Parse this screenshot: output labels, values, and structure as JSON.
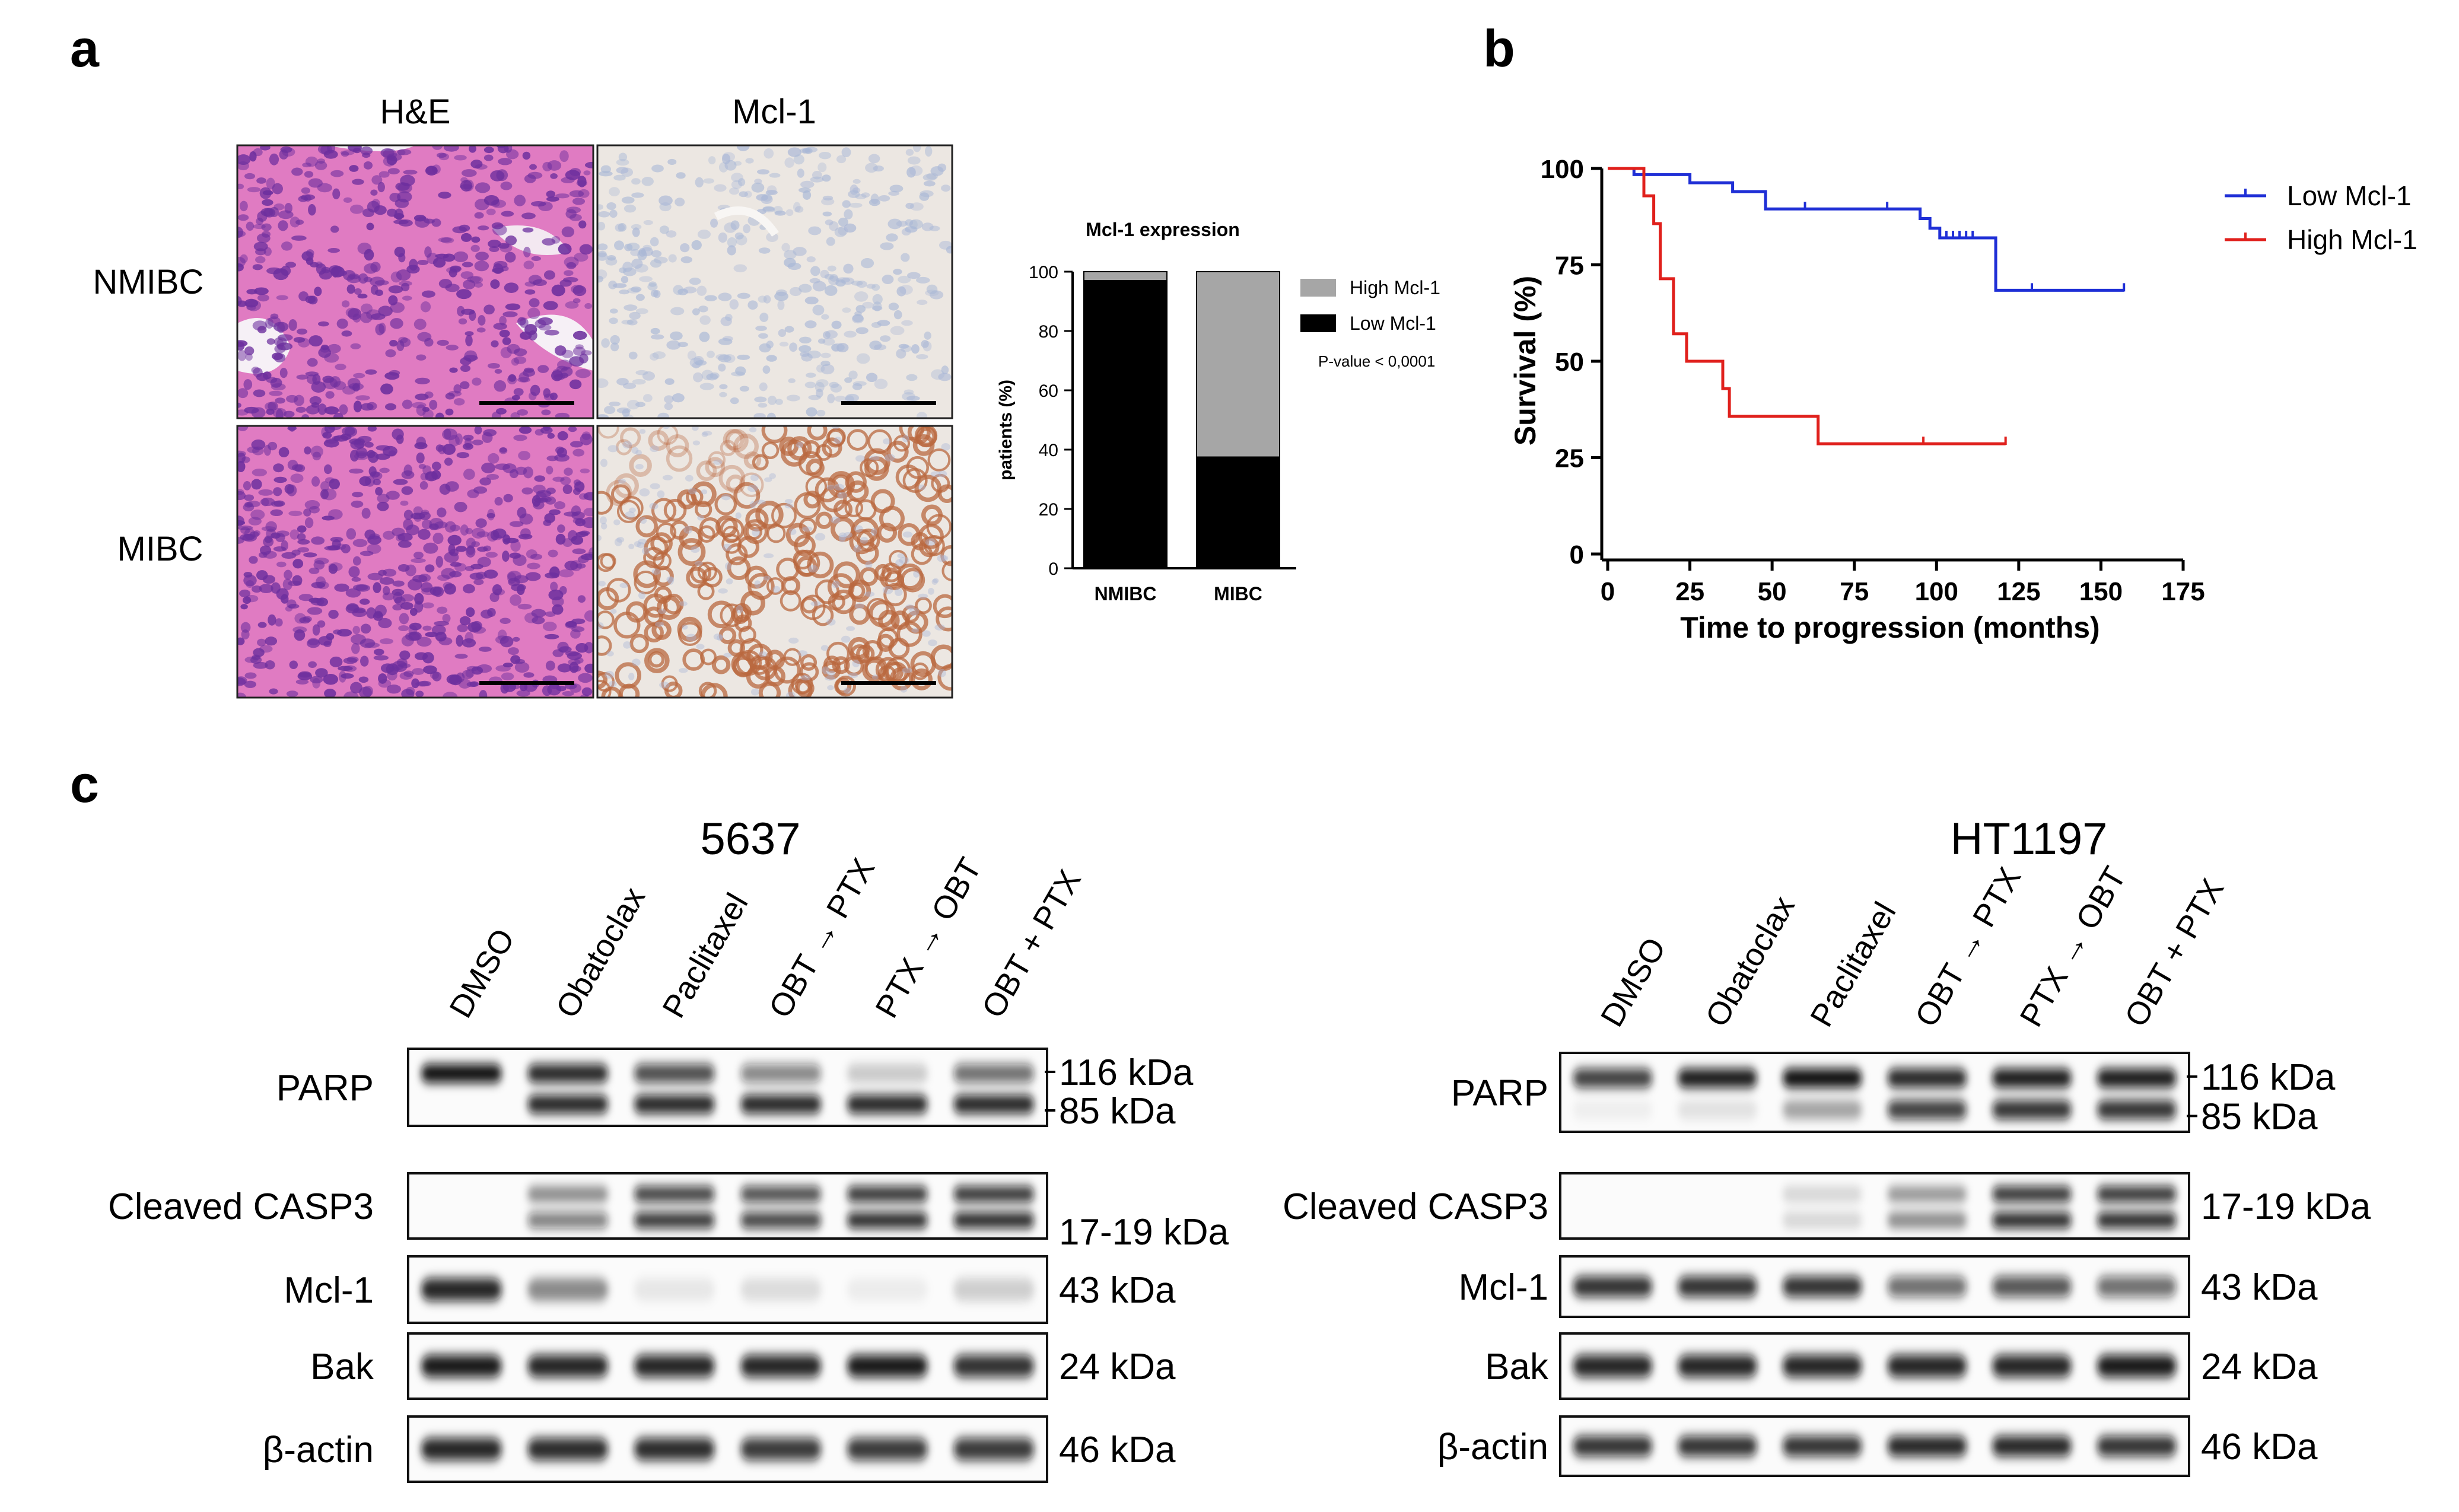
{
  "panel_letters": {
    "a": "a",
    "b": "b",
    "c": "c"
  },
  "panel_a": {
    "col_headers": [
      "H&E",
      "Mcl-1"
    ],
    "row_labels": [
      "NMIBC",
      "MIBC"
    ],
    "micrographs": [
      {
        "stain": "he",
        "row": 0,
        "col": 0,
        "tissue": "papillary"
      },
      {
        "stain": "ihc",
        "row": 0,
        "col": 1,
        "tissue": "papillary",
        "intensity": "negative"
      },
      {
        "stain": "he",
        "row": 1,
        "col": 0,
        "tissue": "invasive"
      },
      {
        "stain": "ihc",
        "row": 1,
        "col": 1,
        "tissue": "invasive",
        "intensity": "strong"
      }
    ],
    "colors": {
      "he_bg": "#e07bc2",
      "he_nuclei": "#6d2f9e",
      "ihc_bg": "#ece7e2",
      "ihc_neg_nuclei": "#a9b7d6",
      "ihc_pos": "#b9683f",
      "scale_bar": "#000000"
    }
  },
  "chart_data": [
    {
      "type": "bar",
      "stacked": true,
      "title": "Mcl-1 expression",
      "ylabel": "patients (%)",
      "xlabel": "",
      "categories": [
        "NMIBC",
        "MIBC"
      ],
      "series": [
        {
          "name": "Low Mcl-1",
          "values": [
            97,
            37.5
          ],
          "color": "#000000"
        },
        {
          "name": "High Mcl-1",
          "values": [
            3,
            62.5
          ],
          "color": "#a6a6a6"
        }
      ],
      "ylim": [
        0,
        100
      ],
      "yticks": [
        "0",
        "20",
        "40",
        "60",
        "80",
        "100"
      ],
      "annotation": "P-value < 0,0001",
      "legend": "right",
      "legend_order": [
        "High Mcl-1",
        "Low Mcl-1"
      ]
    },
    {
      "type": "line",
      "step": true,
      "xlabel": "Time to progression (months)",
      "ylabel": "Survival (%)",
      "xlim": [
        0,
        175
      ],
      "ylim": [
        0,
        100
      ],
      "xticks": [
        "0",
        "25",
        "50",
        "75",
        "100",
        "125",
        "150",
        "175"
      ],
      "yticks": [
        "0",
        "25",
        "50",
        "75",
        "100"
      ],
      "legend": "top-right",
      "series": [
        {
          "name": "Low Mcl-1",
          "color": "#1f2fd6",
          "points": [
            [
              0,
              100
            ],
            [
              8,
              100
            ],
            [
              8,
              98.4
            ],
            [
              25,
              98.4
            ],
            [
              25,
              96.3
            ],
            [
              38,
              96.3
            ],
            [
              38,
              94
            ],
            [
              48,
              94
            ],
            [
              48,
              89.5
            ],
            [
              95,
              89.5
            ],
            [
              95,
              87
            ],
            [
              98,
              87
            ],
            [
              98,
              84.5
            ],
            [
              101,
              84.5
            ],
            [
              101,
              82
            ],
            [
              118,
              82
            ],
            [
              118,
              68.4
            ],
            [
              157,
              68.4
            ]
          ],
          "censored": [
            [
              60,
              89.5
            ],
            [
              85,
              89.5
            ],
            [
              103,
              82
            ],
            [
              105,
              82
            ],
            [
              107,
              82
            ],
            [
              109,
              82
            ],
            [
              111,
              82
            ],
            [
              129,
              68.4
            ],
            [
              157,
              68.4
            ]
          ]
        },
        {
          "name": "High Mcl-1",
          "color": "#e0201c",
          "points": [
            [
              0,
              100
            ],
            [
              11,
              100
            ],
            [
              11,
              92.9
            ],
            [
              14,
              92.9
            ],
            [
              14,
              85.7
            ],
            [
              16,
              85.7
            ],
            [
              16,
              71.4
            ],
            [
              20,
              71.4
            ],
            [
              20,
              57.1
            ],
            [
              24,
              57.1
            ],
            [
              24,
              50
            ],
            [
              35,
              50
            ],
            [
              35,
              42.9
            ],
            [
              37,
              42.9
            ],
            [
              37,
              35.7
            ],
            [
              64,
              35.7
            ],
            [
              64,
              28.6
            ],
            [
              121,
              28.6
            ]
          ],
          "censored": [
            [
              96,
              28.6
            ],
            [
              121,
              28.6
            ]
          ]
        }
      ]
    }
  ],
  "panel_c": {
    "blots": [
      {
        "title": "5637",
        "lanes": [
          "DMSO",
          "Obatoclax",
          "Paclitaxel",
          "OBT → PTX",
          "PTX → OBT",
          "OBT + PTX"
        ],
        "rows": [
          {
            "label": "PARP",
            "sizes": [
              "116 kDa",
              "85 kDa"
            ],
            "bands": [
              [
                1.0,
                0.9,
                0.75,
                0.5,
                0.2,
                0.6
              ],
              [
                0,
                0.9,
                0.9,
                0.9,
                0.9,
                0.9
              ]
            ]
          },
          {
            "label": "Cleaved CASP3",
            "sizes": [
              "17-19 kDa"
            ],
            "bands": [
              [
                0,
                0.45,
                0.8,
                0.75,
                0.85,
                0.85
              ],
              [
                0,
                0.55,
                0.85,
                0.8,
                0.9,
                0.9
              ]
            ]
          },
          {
            "label": "Mcl-1",
            "sizes": [
              "43 kDa"
            ],
            "bands": [
              [
                0.9,
                0.45,
                0.08,
                0.12,
                0.06,
                0.18
              ]
            ]
          },
          {
            "label": "Bak",
            "sizes": [
              "24 kDa"
            ],
            "bands": [
              [
                0.95,
                0.9,
                0.9,
                0.9,
                0.95,
                0.85
              ]
            ]
          },
          {
            "label": "β-actin",
            "sizes": [
              "46 kDa"
            ],
            "bands": [
              [
                0.9,
                0.88,
                0.88,
                0.82,
                0.82,
                0.82
              ]
            ]
          }
        ]
      },
      {
        "title": "HT1197",
        "lanes": [
          "DMSO",
          "Obatoclax",
          "Paclitaxel",
          "OBT → PTX",
          "PTX → OBT",
          "OBT + PTX"
        ],
        "rows": [
          {
            "label": "PARP",
            "sizes": [
              "116 kDa",
              "85 kDa"
            ],
            "bands": [
              [
                0.8,
                0.95,
                1.0,
                0.9,
                0.95,
                0.95
              ],
              [
                0.05,
                0.1,
                0.35,
                0.8,
                0.85,
                0.85
              ]
            ]
          },
          {
            "label": "Cleaved CASP3",
            "sizes": [
              "17-19 kDa"
            ],
            "bands": [
              [
                0,
                0,
                0.15,
                0.4,
                0.85,
                0.85
              ],
              [
                0,
                0,
                0.15,
                0.45,
                0.9,
                0.9
              ]
            ]
          },
          {
            "label": "Mcl-1",
            "sizes": [
              "43 kDa"
            ],
            "bands": [
              [
                0.85,
                0.85,
                0.85,
                0.6,
                0.7,
                0.6
              ]
            ]
          },
          {
            "label": "Bak",
            "sizes": [
              "24 kDa"
            ],
            "bands": [
              [
                0.9,
                0.9,
                0.9,
                0.9,
                0.9,
                0.95
              ]
            ]
          },
          {
            "label": "β-actin",
            "sizes": [
              "46 kDa"
            ],
            "bands": [
              [
                0.85,
                0.85,
                0.85,
                0.9,
                0.9,
                0.85
              ]
            ]
          }
        ]
      }
    ]
  }
}
